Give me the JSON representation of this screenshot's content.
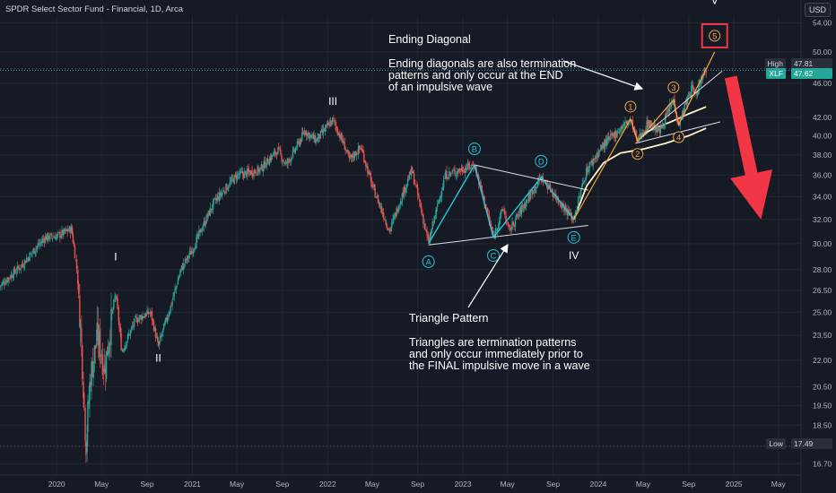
{
  "header": {
    "title": "SPDR Select Sector Fund - Financial, 1D, Arca"
  },
  "currency": "USD",
  "price_badges": {
    "high_label": "High",
    "high_value": "47.81",
    "last_label": "XLF",
    "last_value": "47.62",
    "low_label": "Low",
    "low_value": "17.49"
  },
  "annotations": {
    "diagonal_title": "Ending Diagonal",
    "diagonal_lines": [
      "Ending diagonals are also termination",
      "patterns and only occur at the END",
      "of an impulsive wave"
    ],
    "triangle_title": "Triangle Pattern",
    "triangle_lines": [
      "Triangles are termination patterns",
      "and only occur immediately prior to",
      "the FINAL impulsive move in a wave"
    ]
  },
  "colors": {
    "background": "#161a25",
    "grid": "#232733",
    "axis_text": "#b2b5be",
    "up": "#26a69a",
    "down": "#ef5350",
    "triangle": "#26c6da",
    "diagonal": "#f7a541",
    "trend_line": "#ffffff",
    "arrow": "#f23645",
    "moving_average": "#fff5c8",
    "last_badge": "#26a69a"
  },
  "chart_data": {
    "type": "candlestick",
    "title": "",
    "xlabel": "",
    "ylabel": "",
    "y_scale": "log",
    "ylim": [
      16.2,
      55
    ],
    "x_range": [
      "2019-08",
      "2025-07"
    ],
    "grid": true,
    "x_ticks": [
      {
        "date": "2020-01",
        "label": "2020"
      },
      {
        "date": "2020-05",
        "label": "May"
      },
      {
        "date": "2020-09",
        "label": "Sep"
      },
      {
        "date": "2021-01",
        "label": "2021"
      },
      {
        "date": "2021-05",
        "label": "May"
      },
      {
        "date": "2021-09",
        "label": "Sep"
      },
      {
        "date": "2022-01",
        "label": "2022"
      },
      {
        "date": "2022-05",
        "label": "May"
      },
      {
        "date": "2022-09",
        "label": "Sep"
      },
      {
        "date": "2023-01",
        "label": "2023"
      },
      {
        "date": "2023-05",
        "label": "May"
      },
      {
        "date": "2023-09",
        "label": "Sep"
      },
      {
        "date": "2024-01",
        "label": "2024"
      },
      {
        "date": "2024-05",
        "label": "May"
      },
      {
        "date": "2024-09",
        "label": "Sep"
      },
      {
        "date": "2025-01",
        "label": "2025"
      },
      {
        "date": "2025-05",
        "label": "May"
      }
    ],
    "y_ticks": [
      "54.00",
      "50.00",
      "46.00",
      "42.00",
      "40.00",
      "38.00",
      "36.00",
      "34.00",
      "32.00",
      "30.00",
      "28.00",
      "26.50",
      "25.00",
      "23.50",
      "22.00",
      "20.50",
      "19.50",
      "18.50",
      "17.49",
      "16.70"
    ],
    "y_ticks_hidden": [
      "17.49"
    ],
    "reference_lines": {
      "high": 47.81,
      "last": 47.62,
      "low": 17.49
    },
    "price_path": [
      [
        "2019-08-01",
        26.8
      ],
      [
        "2019-09-01",
        27.6
      ],
      [
        "2019-10-01",
        28.4
      ],
      [
        "2019-11-01",
        29.5
      ],
      [
        "2019-12-01",
        30.5
      ],
      [
        "2020-01-01",
        30.6
      ],
      [
        "2020-02-10",
        31.2
      ],
      [
        "2020-02-25",
        28.0
      ],
      [
        "2020-03-10",
        22.0
      ],
      [
        "2020-03-20",
        17.49
      ],
      [
        "2020-04-01",
        21.0
      ],
      [
        "2020-04-20",
        23.5
      ],
      [
        "2020-05-10",
        21.5
      ],
      [
        "2020-06-08",
        26.3
      ],
      [
        "2020-06-25",
        22.5
      ],
      [
        "2020-08-01",
        24.5
      ],
      [
        "2020-09-10",
        25.0
      ],
      [
        "2020-10-01",
        22.8
      ],
      [
        "2020-11-05",
        25.5
      ],
      [
        "2020-12-01",
        28.0
      ],
      [
        "2021-01-01",
        29.5
      ],
      [
        "2021-03-01",
        33.5
      ],
      [
        "2021-05-01",
        36.0
      ],
      [
        "2021-07-01",
        36.5
      ],
      [
        "2021-08-20",
        38.5
      ],
      [
        "2021-09-10",
        37.0
      ],
      [
        "2021-10-01",
        38.2
      ],
      [
        "2021-11-01",
        40.5
      ],
      [
        "2021-12-01",
        39.5
      ],
      [
        "2022-01-15",
        41.7
      ],
      [
        "2022-02-15",
        39.0
      ],
      [
        "2022-03-01",
        37.5
      ],
      [
        "2022-04-01",
        38.8
      ],
      [
        "2022-05-01",
        35.0
      ],
      [
        "2022-06-17",
        31.0
      ],
      [
        "2022-08-16",
        36.5
      ],
      [
        "2022-09-30",
        30.0
      ],
      [
        "2022-11-15",
        36.0
      ],
      [
        "2023-02-01",
        37.0
      ],
      [
        "2023-03-24",
        30.5
      ],
      [
        "2023-04-20",
        33.0
      ],
      [
        "2023-05-05",
        31.0
      ],
      [
        "2023-07-31",
        35.8
      ],
      [
        "2023-09-20",
        33.5
      ],
      [
        "2023-10-27",
        32.0
      ],
      [
        "2023-12-01",
        36.5
      ],
      [
        "2024-01-15",
        39.0
      ],
      [
        "2024-03-28",
        41.8
      ],
      [
        "2024-04-16",
        39.4
      ],
      [
        "2024-05-15",
        41.5
      ],
      [
        "2024-06-14",
        40.4
      ],
      [
        "2024-07-22",
        44.0
      ],
      [
        "2024-08-05",
        41.2
      ],
      [
        "2024-09-10",
        45.5
      ],
      [
        "2024-09-20",
        44.5
      ],
      [
        "2024-10-14",
        47.81
      ],
      [
        "2024-10-18",
        47.62
      ]
    ],
    "triangle_waves": [
      {
        "label": "A",
        "date": "2022-09-30",
        "price": 30.0
      },
      {
        "label": "B",
        "date": "2023-02-01",
        "price": 37.0
      },
      {
        "label": "C",
        "date": "2023-03-24",
        "price": 30.5
      },
      {
        "label": "D",
        "date": "2023-07-31",
        "price": 35.8
      },
      {
        "label": "E",
        "date": "2023-10-27",
        "price": 32.0
      }
    ],
    "diagonal_waves": [
      {
        "label": "1",
        "date": "2024-03-28",
        "price": 41.8
      },
      {
        "label": "2",
        "date": "2024-04-16",
        "price": 39.4
      },
      {
        "label": "3",
        "date": "2024-07-22",
        "price": 44.0
      },
      {
        "label": "4",
        "date": "2024-08-05",
        "price": 41.2
      },
      {
        "label": "5",
        "date": "2024-11-10",
        "price": 50.0
      }
    ],
    "degree_labels": [
      {
        "label": "I",
        "date": "2020-06-08",
        "price": 28.7
      },
      {
        "label": "II",
        "date": "2020-10-01",
        "price": 21.9
      },
      {
        "label": "III",
        "date": "2022-01-15",
        "price": 43.4
      },
      {
        "label": "IV",
        "date": "2023-10-27",
        "price": 28.8
      },
      {
        "label": "V",
        "date": "2024-11-10",
        "price": 56.8
      }
    ],
    "trend_lines": [
      {
        "from": [
          "2022-09-30",
          29.9
        ],
        "to": [
          "2023-12-05",
          31.5
        ]
      },
      {
        "from": [
          "2023-02-01",
          37.0
        ],
        "to": [
          "2023-12-05",
          34.6
        ]
      },
      {
        "from": [
          "2024-04-20",
          39.6
        ],
        "to": [
          "2024-11-30",
          47.5
        ]
      },
      {
        "from": [
          "2024-04-10",
          39.2
        ],
        "to": [
          "2024-11-25",
          41.5
        ]
      }
    ],
    "moving_average": [
      [
        "2023-10-27",
        32.0
      ],
      [
        "2023-12-01",
        35.0
      ],
      [
        "2024-01-15",
        37.2
      ],
      [
        "2024-03-01",
        38.2
      ],
      [
        "2024-05-01",
        38.6
      ],
      [
        "2024-07-01",
        39.2
      ],
      [
        "2024-09-01",
        40.0
      ],
      [
        "2024-10-18",
        40.8
      ]
    ],
    "moving_average_2": [
      [
        "2024-04-20",
        40.0
      ],
      [
        "2024-06-01",
        40.8
      ],
      [
        "2024-07-15",
        41.5
      ],
      [
        "2024-09-01",
        42.4
      ],
      [
        "2024-10-18",
        43.2
      ]
    ],
    "projection": {
      "from": [
        "2024-11-10",
        50.0
      ],
      "to": [
        "2025-03-15",
        32.0
      ]
    }
  }
}
